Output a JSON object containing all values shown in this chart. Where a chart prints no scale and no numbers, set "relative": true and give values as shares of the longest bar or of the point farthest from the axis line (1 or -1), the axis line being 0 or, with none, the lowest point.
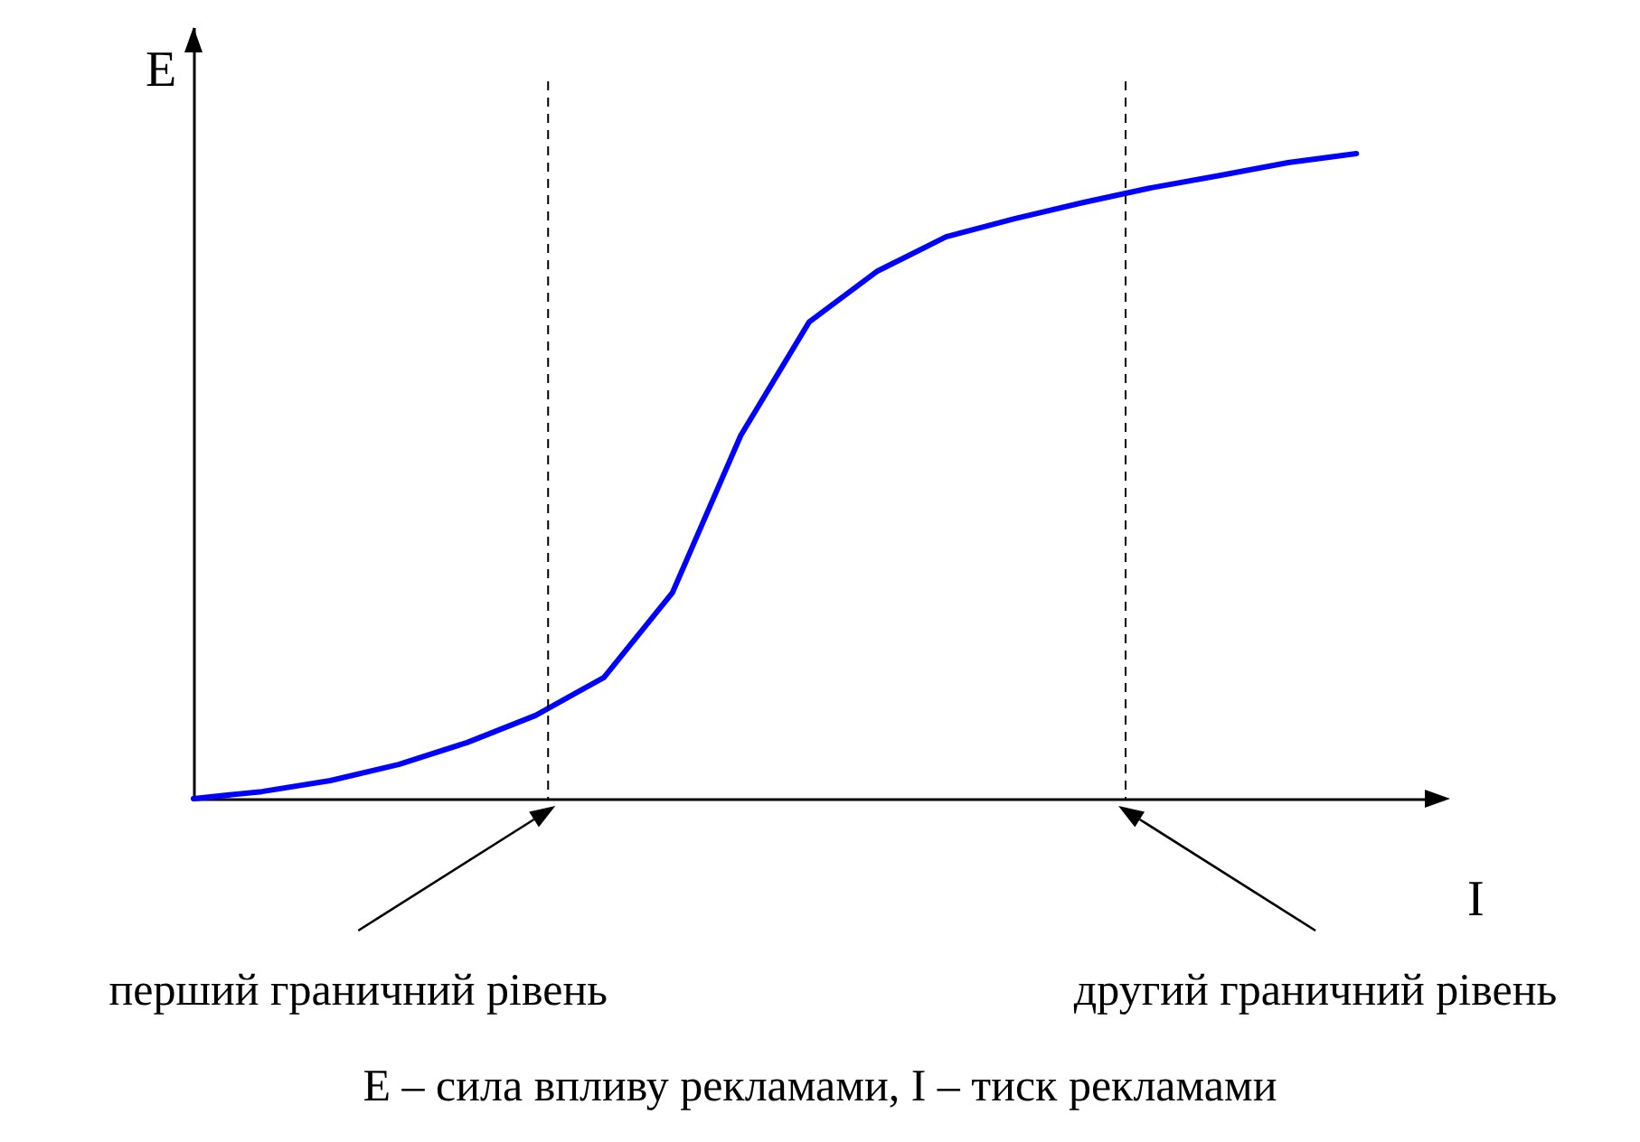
{
  "chart_data": {
    "type": "line",
    "relative": true,
    "xlabel": "I",
    "ylabel": "E",
    "marker": "none",
    "categories": [
      null,
      null,
      null,
      null,
      null,
      null,
      null,
      null,
      null,
      null,
      null,
      null,
      null,
      null,
      null,
      null,
      null,
      null,
      null
    ],
    "series": [
      {
        "color": "#0000ff",
        "line_style": "solid",
        "values": [
          0,
          0.011,
          0.028,
          0.053,
          0.087,
          0.129,
          0.188,
          0.319,
          0.563,
          0.739,
          0.818,
          0.871,
          0.899,
          0.924,
          0.947,
          0.966,
          0.986,
          1,
          null
        ]
      }
    ],
    "annotations": [
      "перший граничний рівень",
      "другий граничний рівень",
      "E – сила впливу рекламами, I – тиск рекламами"
    ]
  }
}
